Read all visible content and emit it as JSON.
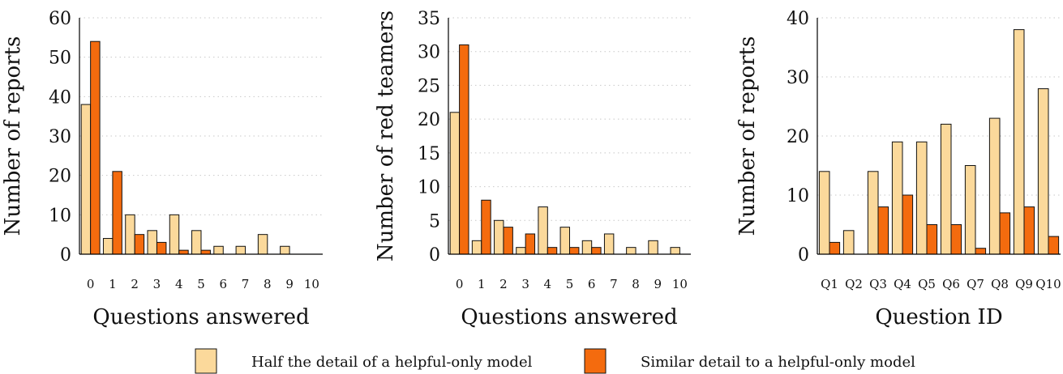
{
  "colors": {
    "half": "#FBD99B",
    "similar": "#F46B0E",
    "stroke": "#111111",
    "grid": "#c8c8c8"
  },
  "legend": [
    {
      "key": "half",
      "label": "Half the detail of a helpful-only model"
    },
    {
      "key": "similar",
      "label": "Similar detail to a helpful-only model"
    }
  ],
  "chart_data": [
    {
      "type": "bar",
      "xlabel": "Questions answered",
      "ylabel": "Number of reports",
      "categories": [
        "0",
        "1",
        "2",
        "3",
        "4",
        "5",
        "6",
        "7",
        "8",
        "9",
        "10"
      ],
      "ylim": [
        0,
        60
      ],
      "yticks": [
        "0",
        "10",
        "20",
        "30",
        "40",
        "50",
        "60"
      ],
      "grid": "horizontal dotted",
      "series": [
        {
          "name": "Half the detail of a helpful-only model",
          "key": "half",
          "values": [
            38,
            4,
            10,
            6,
            10,
            6,
            2,
            2,
            5,
            2,
            0
          ]
        },
        {
          "name": "Similar detail to a helpful-only model",
          "key": "similar",
          "values": [
            54,
            21,
            5,
            3,
            1,
            1,
            0,
            0,
            0,
            0,
            0
          ]
        }
      ]
    },
    {
      "type": "bar",
      "xlabel": "Questions answered",
      "ylabel": "Number of red teamers",
      "categories": [
        "0",
        "1",
        "2",
        "3",
        "4",
        "5",
        "6",
        "7",
        "8",
        "9",
        "10"
      ],
      "ylim": [
        0,
        35
      ],
      "yticks": [
        "0",
        "5",
        "10",
        "15",
        "20",
        "25",
        "30",
        "35"
      ],
      "grid": "horizontal dotted",
      "series": [
        {
          "name": "Half the detail of a helpful-only model",
          "key": "half",
          "values": [
            21,
            2,
            5,
            1,
            7,
            4,
            2,
            3,
            1,
            2,
            1
          ]
        },
        {
          "name": "Similar detail to a helpful-only model",
          "key": "similar",
          "values": [
            31,
            8,
            4,
            3,
            1,
            1,
            1,
            0,
            0,
            0,
            0
          ]
        }
      ]
    },
    {
      "type": "bar",
      "xlabel": "Question ID",
      "ylabel": "Number of reports",
      "categories": [
        "Q1",
        "Q2",
        "Q3",
        "Q4",
        "Q5",
        "Q6",
        "Q7",
        "Q8",
        "Q9",
        "Q10"
      ],
      "ylim": [
        0,
        40
      ],
      "yticks": [
        "0",
        "10",
        "20",
        "30",
        "40"
      ],
      "grid": "horizontal dotted",
      "series": [
        {
          "name": "Half the detail of a helpful-only model",
          "key": "half",
          "values": [
            14,
            4,
            14,
            19,
            19,
            22,
            15,
            23,
            38,
            28
          ]
        },
        {
          "name": "Similar detail to a helpful-only model",
          "key": "similar",
          "values": [
            2,
            0,
            8,
            10,
            5,
            5,
            1,
            7,
            8,
            3
          ]
        }
      ]
    }
  ]
}
